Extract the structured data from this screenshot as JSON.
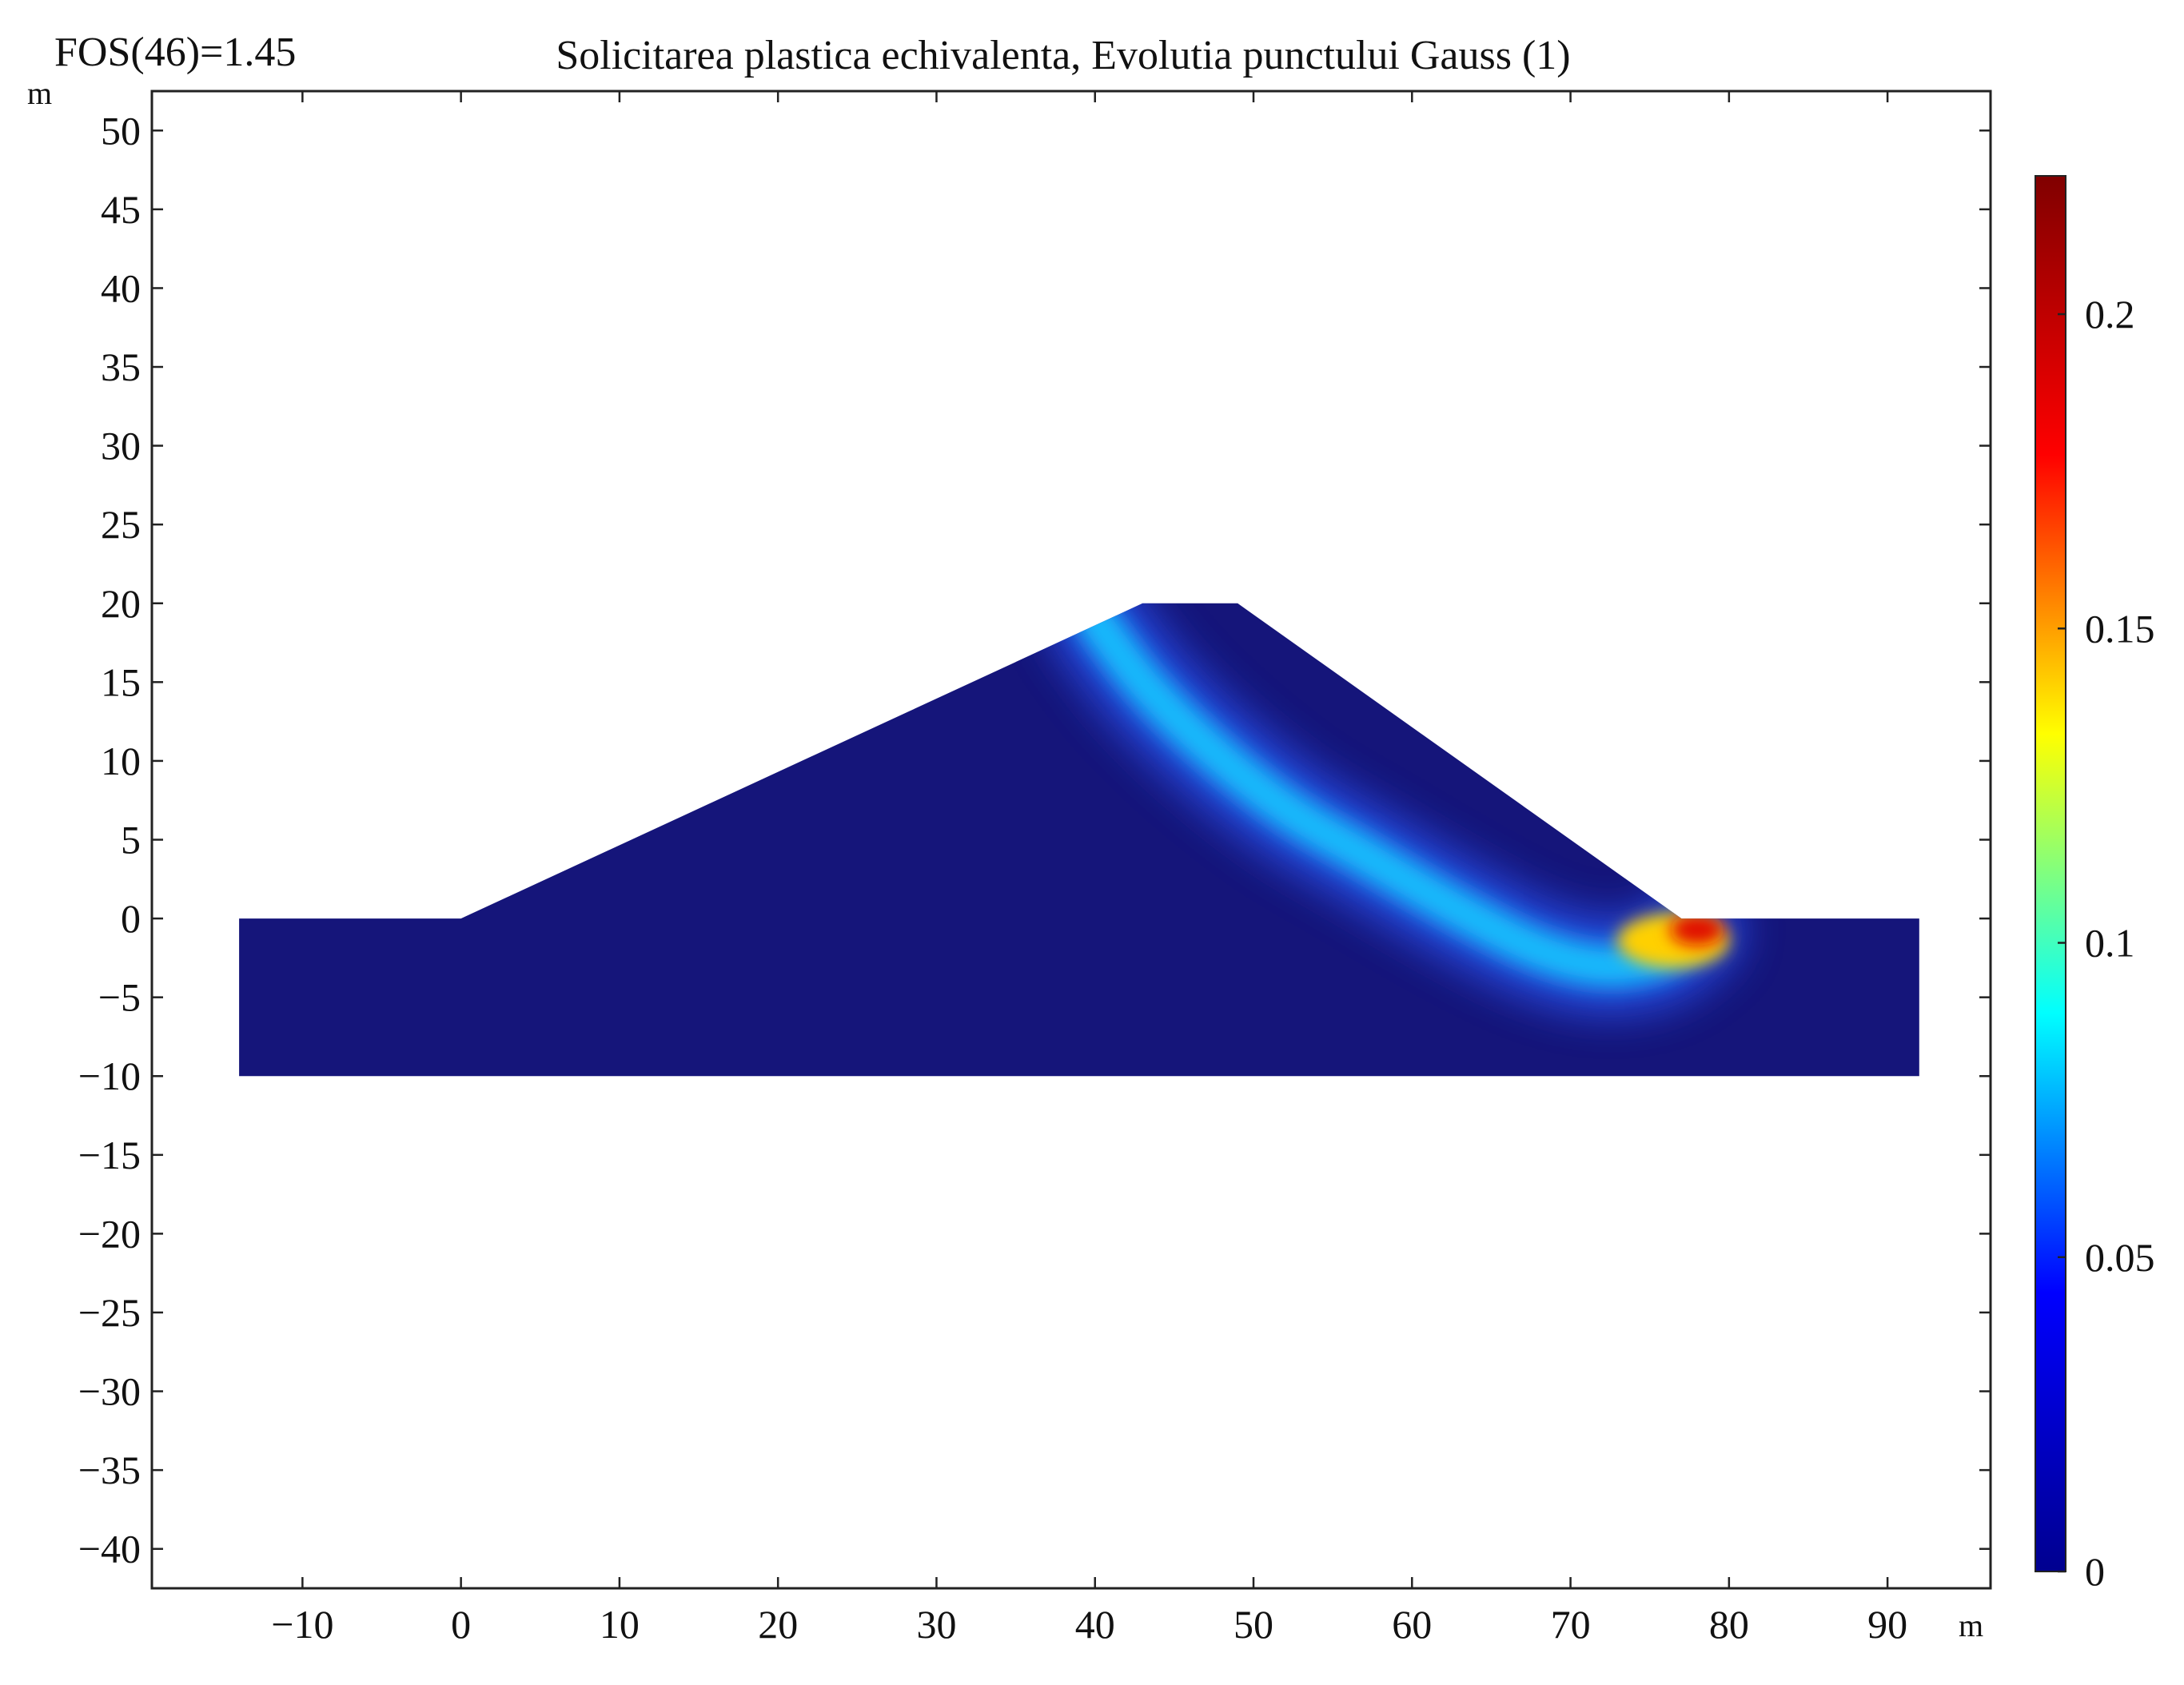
{
  "header": {
    "fos_label": "FOS(46)=1.45",
    "title": "Solicitarea plastica echivalenta, Evolutia punctului Gauss (1)"
  },
  "chart_data": {
    "type": "heatmap",
    "title": "Solicitarea plastica echivalenta, Evolutia punctului Gauss (1)",
    "annotation": "FOS(46)=1.45",
    "xlabel": "m",
    "ylabel": "m",
    "xlim": [
      -19.5,
      96.5
    ],
    "ylim": [
      -42.5,
      52.5
    ],
    "x_ticks": [
      -10,
      0,
      10,
      20,
      30,
      40,
      50,
      60,
      70,
      80,
      90
    ],
    "x_tick_labels": [
      "−10",
      "0",
      "10",
      "20",
      "30",
      "40",
      "50",
      "60",
      "70",
      "80",
      "90"
    ],
    "y_ticks": [
      50,
      45,
      40,
      35,
      30,
      25,
      20,
      15,
      10,
      5,
      0,
      -5,
      -10,
      -15,
      -20,
      -25,
      -30,
      -35,
      -40
    ],
    "y_tick_labels": [
      "50",
      "45",
      "40",
      "35",
      "30",
      "25",
      "20",
      "15",
      "10",
      "5",
      "0",
      "−5",
      "−10",
      "−15",
      "−20",
      "−25",
      "−30",
      "−35",
      "−40"
    ],
    "domain_polygon": [
      [
        -14,
        -10
      ],
      [
        -14,
        0
      ],
      [
        0,
        0
      ],
      [
        43,
        20
      ],
      [
        49,
        20
      ],
      [
        77,
        0
      ],
      [
        92,
        0
      ],
      [
        92,
        -10
      ]
    ],
    "band_path": [
      [
        40,
        19
      ],
      [
        43,
        15
      ],
      [
        47,
        11
      ],
      [
        52,
        7
      ],
      [
        57,
        4
      ],
      [
        63,
        0.5
      ],
      [
        68,
        -2
      ],
      [
        72,
        -3
      ],
      [
        75.5,
        -2.5
      ],
      [
        77.8,
        -0.8
      ]
    ],
    "peak_point": [
      78,
      -0.7
    ],
    "colorbar": {
      "range": [
        0,
        0.222
      ],
      "ticks": [
        0,
        0.05,
        0.1,
        0.15,
        0.2
      ],
      "tick_labels": [
        "0",
        "0.05",
        "0.1",
        "0.15",
        "0.2"
      ],
      "colormap": "jet",
      "colors": [
        "#00008f",
        "#0000ff",
        "#00ffff",
        "#ffff00",
        "#ff0000",
        "#800000"
      ]
    },
    "background_color": "#15157a",
    "grid": false,
    "legend": "colorbar-right"
  }
}
